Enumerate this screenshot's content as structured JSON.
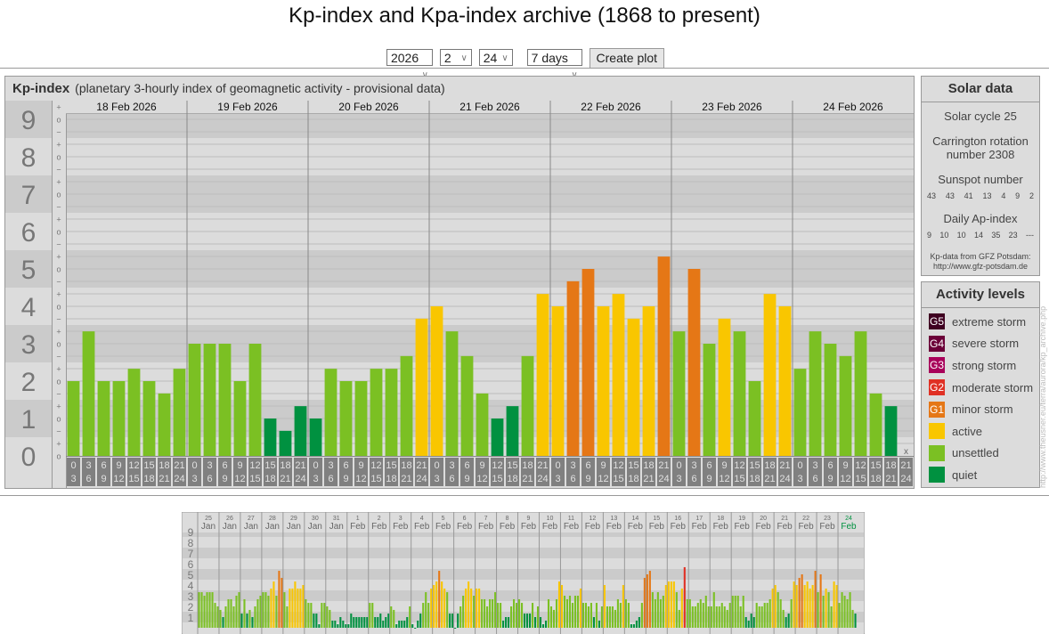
{
  "page": {
    "title": "Kp-index and Kpa-index archive (1868 to present)"
  },
  "controls": {
    "year": "2026",
    "month": "2",
    "day": "24",
    "range": "7 days",
    "create_label": "Create plot"
  },
  "panel": {
    "title": "Kp-index",
    "subtitle": "(planetary 3-hourly index of geomagnetic activity - provisional data)"
  },
  "solar": {
    "title": "Solar data",
    "cycle": "Solar cycle 25",
    "carrington_line1": "Carrington rotation",
    "carrington_line2": "number 2308",
    "sunspot_label": "Sunspot number",
    "sunspots": [
      "43",
      "43",
      "41",
      "13",
      "4",
      "9",
      "2"
    ],
    "ap_label": "Daily Ap-index",
    "ap": [
      "9",
      "10",
      "10",
      "14",
      "35",
      "23",
      "---"
    ],
    "source_line1": "Kp-data from GFZ Potsdam:",
    "source_line2": "http://www.gfz-potsdam.de"
  },
  "activity": {
    "title": "Activity levels",
    "levels": [
      {
        "badge": "G5",
        "label": "extreme storm",
        "color": "#3f0021"
      },
      {
        "badge": "G4",
        "label": "severe storm",
        "color": "#6b0038"
      },
      {
        "badge": "G3",
        "label": "strong storm",
        "color": "#a8005a"
      },
      {
        "badge": "G2",
        "label": "moderate storm",
        "color": "#e03024"
      },
      {
        "badge": "G1",
        "label": "minor storm",
        "color": "#e57716"
      },
      {
        "badge": "",
        "label": "active",
        "color": "#f9c600"
      },
      {
        "badge": "",
        "label": "unsettled",
        "color": "#7bc023"
      },
      {
        "badge": "",
        "label": "quiet",
        "color": "#009140"
      }
    ]
  },
  "watermark": "http://www.theusner.eu/terra/aurora/kp_archive.php",
  "chart_data": [
    {
      "type": "bar",
      "ylim": [
        0,
        9
      ],
      "ytick_labels": [
        "0",
        "1",
        "2",
        "3",
        "4",
        "5",
        "6",
        "7",
        "8",
        "9"
      ],
      "sign_labels": {
        "plus": "+",
        "zero": "o",
        "minus": "−"
      },
      "categories": [
        "18 Feb 2026",
        "19 Feb 2026",
        "20 Feb 2026",
        "21 Feb 2026",
        "22 Feb 2026",
        "23 Feb 2026",
        "24 Feb 2026"
      ],
      "hour_bins": [
        [
          "0",
          "3"
        ],
        [
          "3",
          "6"
        ],
        [
          "6",
          "9"
        ],
        [
          "9",
          "12"
        ],
        [
          "12",
          "15"
        ],
        [
          "15",
          "18"
        ],
        [
          "18",
          "21"
        ],
        [
          "21",
          "24"
        ]
      ],
      "missing_mark": "x",
      "values": [
        [
          2,
          3.33,
          2,
          2,
          2.33,
          2,
          1.67,
          2.33
        ],
        [
          3,
          3,
          3,
          2,
          3,
          1,
          0.67,
          1.33
        ],
        [
          1,
          2.33,
          2,
          2,
          2.33,
          2.33,
          2.67,
          3.67
        ],
        [
          4,
          3.33,
          2.67,
          1.67,
          1,
          1.33,
          2.67,
          4.33
        ],
        [
          4,
          4.67,
          5,
          4,
          4.33,
          3.67,
          4,
          5.33
        ],
        [
          3.33,
          5,
          3,
          3.67,
          3.33,
          2,
          4.33,
          4
        ],
        [
          2.33,
          3.33,
          3,
          2.67,
          3.33,
          1.67,
          1.33,
          null
        ]
      ],
      "grid": true
    },
    {
      "type": "bar",
      "ylim": [
        0,
        9
      ],
      "ytick_labels": [
        "1",
        "2",
        "3",
        "4",
        "5",
        "6",
        "7",
        "8",
        "9"
      ],
      "categories": [
        [
          "25",
          "Jan"
        ],
        [
          "26",
          "Jan"
        ],
        [
          "27",
          "Jan"
        ],
        [
          "28",
          "Jan"
        ],
        [
          "29",
          "Jan"
        ],
        [
          "30",
          "Jan"
        ],
        [
          "31",
          "Jan"
        ],
        [
          "1",
          "Feb"
        ],
        [
          "2",
          "Feb"
        ],
        [
          "3",
          "Feb"
        ],
        [
          "4",
          "Feb"
        ],
        [
          "5",
          "Feb"
        ],
        [
          "6",
          "Feb"
        ],
        [
          "7",
          "Feb"
        ],
        [
          "8",
          "Feb"
        ],
        [
          "9",
          "Feb"
        ],
        [
          "10",
          "Feb"
        ],
        [
          "11",
          "Feb"
        ],
        [
          "12",
          "Feb"
        ],
        [
          "13",
          "Feb"
        ],
        [
          "14",
          "Feb"
        ],
        [
          "15",
          "Feb"
        ],
        [
          "16",
          "Feb"
        ],
        [
          "17",
          "Feb"
        ],
        [
          "18",
          "Feb"
        ],
        [
          "19",
          "Feb"
        ],
        [
          "20",
          "Feb"
        ],
        [
          "21",
          "Feb"
        ],
        [
          "22",
          "Feb"
        ],
        [
          "23",
          "Feb"
        ],
        [
          "24",
          "Feb"
        ]
      ],
      "highlight_color": "#009140",
      "values": [
        [
          3.33,
          3.33,
          3,
          3.33,
          3.33,
          3.33,
          2.33,
          2
        ],
        [
          1.67,
          1,
          2,
          2.67,
          2.67,
          2,
          3,
          3.33
        ],
        [
          1.33,
          2.67,
          1.33,
          1.67,
          1,
          2,
          2.67,
          3
        ],
        [
          3.33,
          3.33,
          3,
          3.67,
          4.33,
          3,
          5.33,
          4.67
        ],
        [
          3.33,
          2,
          3.67,
          3.67,
          4.33,
          3.67,
          3.67,
          4
        ],
        [
          2.67,
          2.33,
          2.33,
          1.33,
          1.33,
          0.33,
          2.33,
          2.33
        ],
        [
          2,
          1.67,
          0.67,
          0.67,
          0.33,
          1,
          0.67,
          0.33
        ],
        [
          0.33,
          1.33,
          1,
          1,
          1,
          1,
          1,
          1
        ],
        [
          2.33,
          2.33,
          1,
          1,
          1.33,
          0.67,
          1,
          1.33
        ],
        [
          2,
          1.67,
          0.33,
          0.67,
          0.67,
          0.67,
          1,
          2
        ],
        [
          0.33,
          0,
          0.67,
          1.33,
          2.33,
          3.33,
          2.33,
          3.67
        ],
        [
          4,
          4.33,
          5.33,
          4.33,
          3.67,
          3.33,
          1.33,
          1.33
        ],
        [
          0,
          1.33,
          2,
          3,
          3.67,
          4.33,
          3.67,
          3
        ],
        [
          3.67,
          3.67,
          2.67,
          2.67,
          2,
          2.67,
          2.67,
          3.33
        ],
        [
          2.33,
          2.33,
          0.67,
          1,
          1,
          2,
          2.67,
          2.33
        ],
        [
          2.67,
          2.33,
          1.33,
          1.33,
          1.33,
          2.33,
          1,
          2
        ],
        [
          1,
          0.33,
          0.67,
          2.67,
          2,
          1.67,
          2.67,
          4.33
        ],
        [
          4,
          3,
          2.67,
          3,
          2.33,
          3,
          3,
          3.67
        ],
        [
          2.33,
          2.33,
          2,
          2.33,
          1,
          2.33,
          0.67,
          2
        ],
        [
          4,
          2,
          2,
          2,
          1.67,
          2.67,
          2.33,
          4
        ],
        [
          2.67,
          2.33,
          0.33,
          0.33,
          0.67,
          1,
          2.33,
          4.67
        ],
        [
          5,
          5.33,
          3.33,
          2.67,
          3.33,
          2.67,
          3,
          4
        ],
        [
          4.33,
          4.33,
          4.33,
          3.33,
          1.67,
          3.67,
          5.67,
          2.67
        ],
        [
          2.67,
          2,
          2,
          2.33,
          2.67,
          2.33,
          3,
          2
        ],
        [
          2,
          3.33,
          2,
          2,
          2.33,
          2,
          1.67,
          2.33
        ],
        [
          3,
          3,
          3,
          2,
          3,
          1,
          0.67,
          1.33
        ],
        [
          1,
          2.33,
          2,
          2,
          2.33,
          2.33,
          2.67,
          3.67
        ],
        [
          4,
          3.33,
          2.67,
          1.67,
          1,
          1.33,
          2.67,
          4.33
        ],
        [
          4,
          4.67,
          5,
          4,
          4.33,
          3.67,
          4,
          5.33
        ],
        [
          3.33,
          5,
          3,
          3.67,
          3.33,
          2,
          4.33,
          4
        ],
        [
          2.33,
          3.33,
          3,
          2.67,
          3.33,
          1.67,
          1.33,
          null
        ]
      ],
      "grid": true
    }
  ]
}
